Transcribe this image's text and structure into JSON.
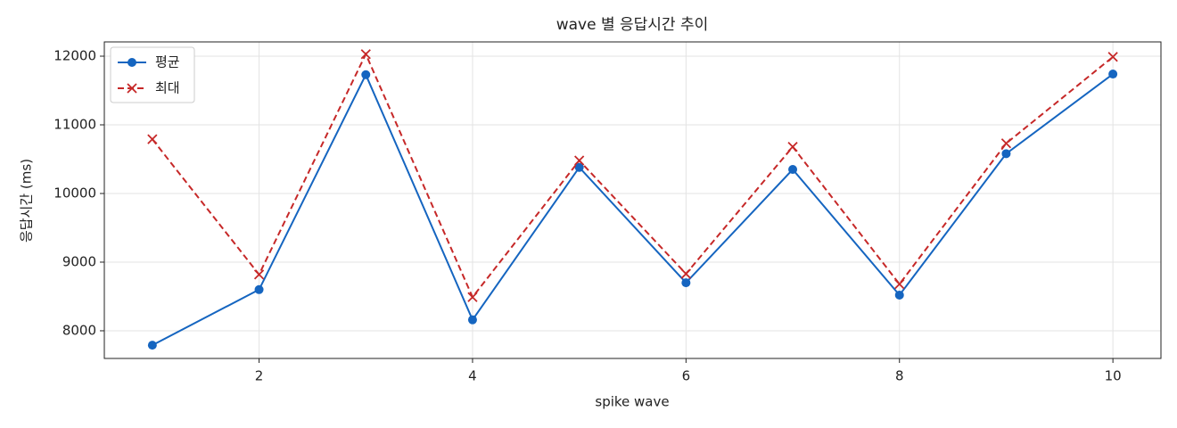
{
  "chart_data": {
    "type": "line",
    "title": "wave 별 응답시간 추이",
    "x_label": "spike wave",
    "y_label": "응답시간 (ms)",
    "x": [
      1,
      2,
      3,
      4,
      5,
      6,
      7,
      8,
      9,
      10
    ],
    "series": [
      {
        "name": "평균",
        "color": "#1565c0",
        "marker": "o",
        "dash": false,
        "values": [
          7790,
          8600,
          11730,
          8160,
          10380,
          8700,
          10350,
          8520,
          10580,
          11740
        ]
      },
      {
        "name": "최대",
        "color": "#c62828",
        "marker": "x",
        "dash": true,
        "values": [
          10790,
          8820,
          12030,
          8490,
          10480,
          8830,
          10680,
          8680,
          10730,
          11990
        ]
      }
    ],
    "xlim": [
      0.55,
      10.45
    ],
    "xticks": [
      2,
      4,
      6,
      8,
      10
    ],
    "ylim": [
      7597,
      12208
    ],
    "yticks": [
      8000,
      9000,
      10000,
      11000,
      12000
    ],
    "grid": true,
    "legend": "upper-left"
  }
}
